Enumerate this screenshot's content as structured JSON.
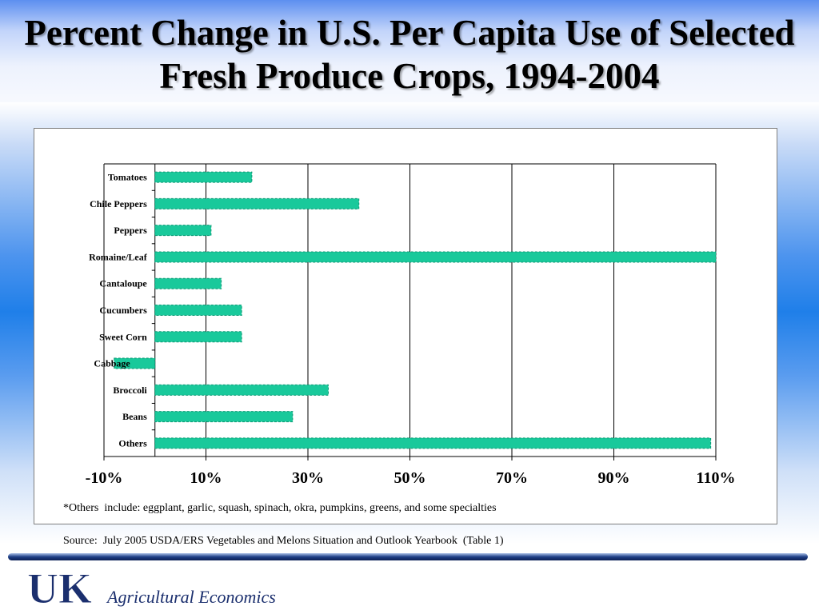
{
  "slide": {
    "title": "Percent Change in U.S. Per Capita Use of Selected Fresh Produce Crops,  1994-2004",
    "footnote": "*Others  include: eggplant, garlic, squash, spinach, okra, pumpkins, greens, and some specialties",
    "source": "Source:  July 2005 USDA/ERS Vegetables and Melons Situation and Outlook Yearbook  (Table 1)",
    "logo_text": "UK",
    "logo_subtitle": "Agricultural Economics"
  },
  "colors": {
    "bar": "#19c99b",
    "bar_edge": "#0e9a75",
    "grid": "#000000"
  },
  "chart_data": {
    "type": "bar",
    "orientation": "horizontal",
    "categories": [
      "Tomatoes",
      "Chile Peppers",
      "Peppers",
      "Romaine/Leaf",
      "Cantaloupe",
      "Cucumbers",
      "Sweet Corn",
      "Cabbage",
      "Broccoli",
      "Beans",
      "Others"
    ],
    "values": [
      19,
      40,
      11,
      110,
      13,
      17,
      17,
      -8,
      34,
      27,
      109
    ],
    "unit": "%",
    "xlim": [
      -10,
      110
    ],
    "xticks": [
      -10,
      10,
      30,
      50,
      70,
      90,
      110
    ],
    "xtick_labels": [
      "-10%",
      "10%",
      "30%",
      "50%",
      "70%",
      "90%",
      "110%"
    ],
    "grid": "vertical",
    "legend": "none"
  }
}
